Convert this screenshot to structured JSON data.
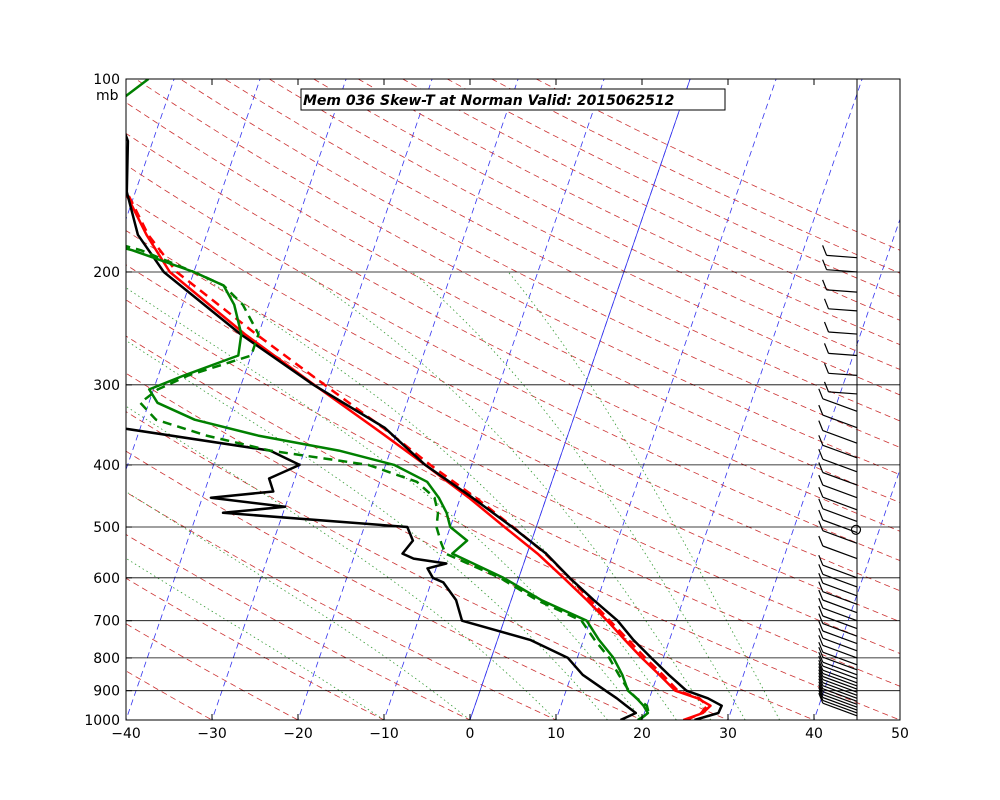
{
  "chart_data": {
    "type": "line",
    "subtype": "skew-t log-p",
    "title": "Mem 036  Skew-T at Norman   Valid: 2015062512",
    "pressure_unit": "mb",
    "xlim": [
      -40,
      50
    ],
    "plim": [
      1000,
      100
    ],
    "x_ticks": [
      -40,
      -30,
      -20,
      -10,
      0,
      10,
      20,
      30,
      40,
      50
    ],
    "p_ticks": [
      100,
      200,
      300,
      400,
      500,
      600,
      700,
      800,
      900,
      1000
    ],
    "grid_isobars": [
      200,
      300,
      400,
      500,
      600,
      700,
      800,
      900
    ],
    "series": [
      {
        "color": "#ff0000",
        "style": "solid",
        "points": [
          [
            1000,
            24.8
          ],
          [
            975,
            26.8
          ],
          [
            950,
            27.4
          ],
          [
            925,
            25.6
          ],
          [
            900,
            22.7
          ],
          [
            850,
            20.2
          ],
          [
            800,
            17.5
          ],
          [
            750,
            14.8
          ],
          [
            700,
            12.0
          ],
          [
            650,
            8.8
          ],
          [
            600,
            5.2
          ],
          [
            550,
            1.2
          ],
          [
            500,
            -3.7
          ],
          [
            450,
            -9.0
          ],
          [
            400,
            -15.4
          ],
          [
            350,
            -22.8
          ],
          [
            300,
            -31.5
          ],
          [
            250,
            -41.6
          ],
          [
            200,
            -52.8
          ],
          [
            175,
            -57.0
          ],
          [
            150,
            -61.2
          ],
          [
            125,
            -65.0
          ],
          [
            100,
            -69.8
          ]
        ]
      },
      {
        "color": "#ff0000",
        "style": "dashed",
        "points": [
          [
            1000,
            25.2
          ],
          [
            975,
            26.6
          ],
          [
            950,
            27.0
          ],
          [
            925,
            25.8
          ],
          [
            900,
            23.0
          ],
          [
            850,
            20.6
          ],
          [
            800,
            17.9
          ],
          [
            750,
            15.2
          ],
          [
            700,
            12.3
          ],
          [
            650,
            9.2
          ],
          [
            600,
            5.9
          ],
          [
            550,
            2.1
          ],
          [
            500,
            -2.7
          ],
          [
            450,
            -8.2
          ],
          [
            400,
            -14.8
          ],
          [
            350,
            -21.8
          ],
          [
            300,
            -30.3
          ],
          [
            250,
            -40.3
          ],
          [
            200,
            -52.0
          ],
          [
            175,
            -56.8
          ],
          [
            150,
            -61.0
          ],
          [
            125,
            -65.2
          ],
          [
            100,
            -69.8
          ]
        ]
      },
      {
        "color": "#000000",
        "style": "solid",
        "points": [
          [
            1000,
            26.1
          ],
          [
            975,
            28.6
          ],
          [
            950,
            28.7
          ],
          [
            925,
            26.8
          ],
          [
            900,
            24.0
          ],
          [
            850,
            21.3
          ],
          [
            800,
            18.6
          ],
          [
            750,
            15.8
          ],
          [
            700,
            13.2
          ],
          [
            650,
            9.6
          ],
          [
            600,
            5.9
          ],
          [
            550,
            2.2
          ],
          [
            500,
            -2.8
          ],
          [
            450,
            -8.6
          ],
          [
            400,
            -15.4
          ],
          [
            350,
            -21.6
          ],
          [
            300,
            -31.6
          ],
          [
            250,
            -42.1
          ],
          [
            200,
            -53.5
          ],
          [
            175,
            -58.0
          ],
          [
            150,
            -61.0
          ],
          [
            125,
            -62.9
          ],
          [
            100,
            -68.0
          ]
        ]
      },
      {
        "color": "#000000",
        "style": "solid",
        "points": [
          [
            1000,
            17.5
          ],
          [
            975,
            19.0
          ],
          [
            950,
            17.6
          ],
          [
            925,
            16.2
          ],
          [
            900,
            14.6
          ],
          [
            850,
            11.3
          ],
          [
            800,
            8.9
          ],
          [
            750,
            3.8
          ],
          [
            700,
            -4.9
          ],
          [
            650,
            -6.4
          ],
          [
            610,
            -8.6
          ],
          [
            600,
            -10.0
          ],
          [
            580,
            -11.0
          ],
          [
            570,
            -9.0
          ],
          [
            560,
            -13.0
          ],
          [
            550,
            -14.5
          ],
          [
            525,
            -13.8
          ],
          [
            500,
            -15.0
          ],
          [
            475,
            -37.0
          ],
          [
            465,
            -30.0
          ],
          [
            450,
            -39.0
          ],
          [
            440,
            -32.0
          ],
          [
            420,
            -33.0
          ],
          [
            400,
            -30.0
          ],
          [
            380,
            -34.0
          ],
          [
            350,
            -52.5
          ],
          [
            330,
            -57.0
          ],
          [
            305,
            -67.4
          ],
          [
            290,
            -64.5
          ],
          [
            275,
            -61.5
          ],
          [
            240,
            -57.0
          ],
          [
            220,
            -65.0
          ],
          [
            200,
            -67.0
          ],
          [
            185,
            -69.0
          ],
          [
            170,
            -70.0
          ],
          [
            155,
            -70.5
          ],
          [
            140,
            -71.0
          ],
          [
            125,
            -75.0
          ],
          [
            100,
            -80.0
          ]
        ]
      },
      {
        "color": "#008000",
        "style": "solid",
        "points": [
          [
            1000,
            19.7
          ],
          [
            975,
            20.4
          ],
          [
            950,
            19.6
          ],
          [
            925,
            18.5
          ],
          [
            900,
            17.2
          ],
          [
            850,
            15.9
          ],
          [
            800,
            14.2
          ],
          [
            750,
            11.8
          ],
          [
            700,
            9.6
          ],
          [
            650,
            3.5
          ],
          [
            600,
            -1.8
          ],
          [
            550,
            -8.7
          ],
          [
            525,
            -7.5
          ],
          [
            500,
            -10.0
          ],
          [
            475,
            -11.0
          ],
          [
            450,
            -12.5
          ],
          [
            425,
            -14.5
          ],
          [
            400,
            -19.0
          ],
          [
            380,
            -26.0
          ],
          [
            360,
            -36.0
          ],
          [
            340,
            -44.0
          ],
          [
            320,
            -49.0
          ],
          [
            305,
            -50.5
          ],
          [
            290,
            -47.0
          ],
          [
            270,
            -41.5
          ],
          [
            250,
            -42.0
          ],
          [
            225,
            -44.0
          ],
          [
            210,
            -46.0
          ],
          [
            200,
            -50.0
          ],
          [
            185,
            -58.0
          ],
          [
            170,
            -69.0
          ],
          [
            160,
            -74.0
          ],
          [
            150,
            -73.0
          ],
          [
            140,
            -75.0
          ],
          [
            130,
            -74.0
          ],
          [
            120,
            -70.5
          ],
          [
            110,
            -66.0
          ],
          [
            100,
            -63.0
          ]
        ]
      },
      {
        "color": "#008000",
        "style": "dashed",
        "points": [
          [
            1000,
            19.5
          ],
          [
            975,
            20.5
          ],
          [
            950,
            20.0
          ],
          [
            925,
            18.5
          ],
          [
            900,
            17.3
          ],
          [
            850,
            15.5
          ],
          [
            800,
            13.7
          ],
          [
            750,
            11.3
          ],
          [
            700,
            9.0
          ],
          [
            650,
            3.0
          ],
          [
            600,
            -2.2
          ],
          [
            550,
            -9.5
          ],
          [
            530,
            -10.4
          ],
          [
            500,
            -11.6
          ],
          [
            475,
            -12.0
          ],
          [
            450,
            -13.0
          ],
          [
            425,
            -15.7
          ],
          [
            400,
            -22.0
          ],
          [
            380,
            -34.0
          ],
          [
            360,
            -42.0
          ],
          [
            340,
            -48.5
          ],
          [
            320,
            -51.0
          ],
          [
            305,
            -49.5
          ],
          [
            290,
            -46.5
          ],
          [
            270,
            -40.0
          ],
          [
            250,
            -40.0
          ],
          [
            225,
            -43.0
          ],
          [
            210,
            -46.0
          ],
          [
            200,
            -50.0
          ],
          [
            185,
            -57.0
          ],
          [
            170,
            -68.0
          ],
          [
            160,
            -70.8
          ],
          [
            150,
            -70.5
          ],
          [
            140,
            -70.0
          ],
          [
            130,
            -69.0
          ],
          [
            120,
            -70.5
          ],
          [
            110,
            -69.0
          ],
          [
            100,
            -66.0
          ]
        ]
      }
    ]
  }
}
